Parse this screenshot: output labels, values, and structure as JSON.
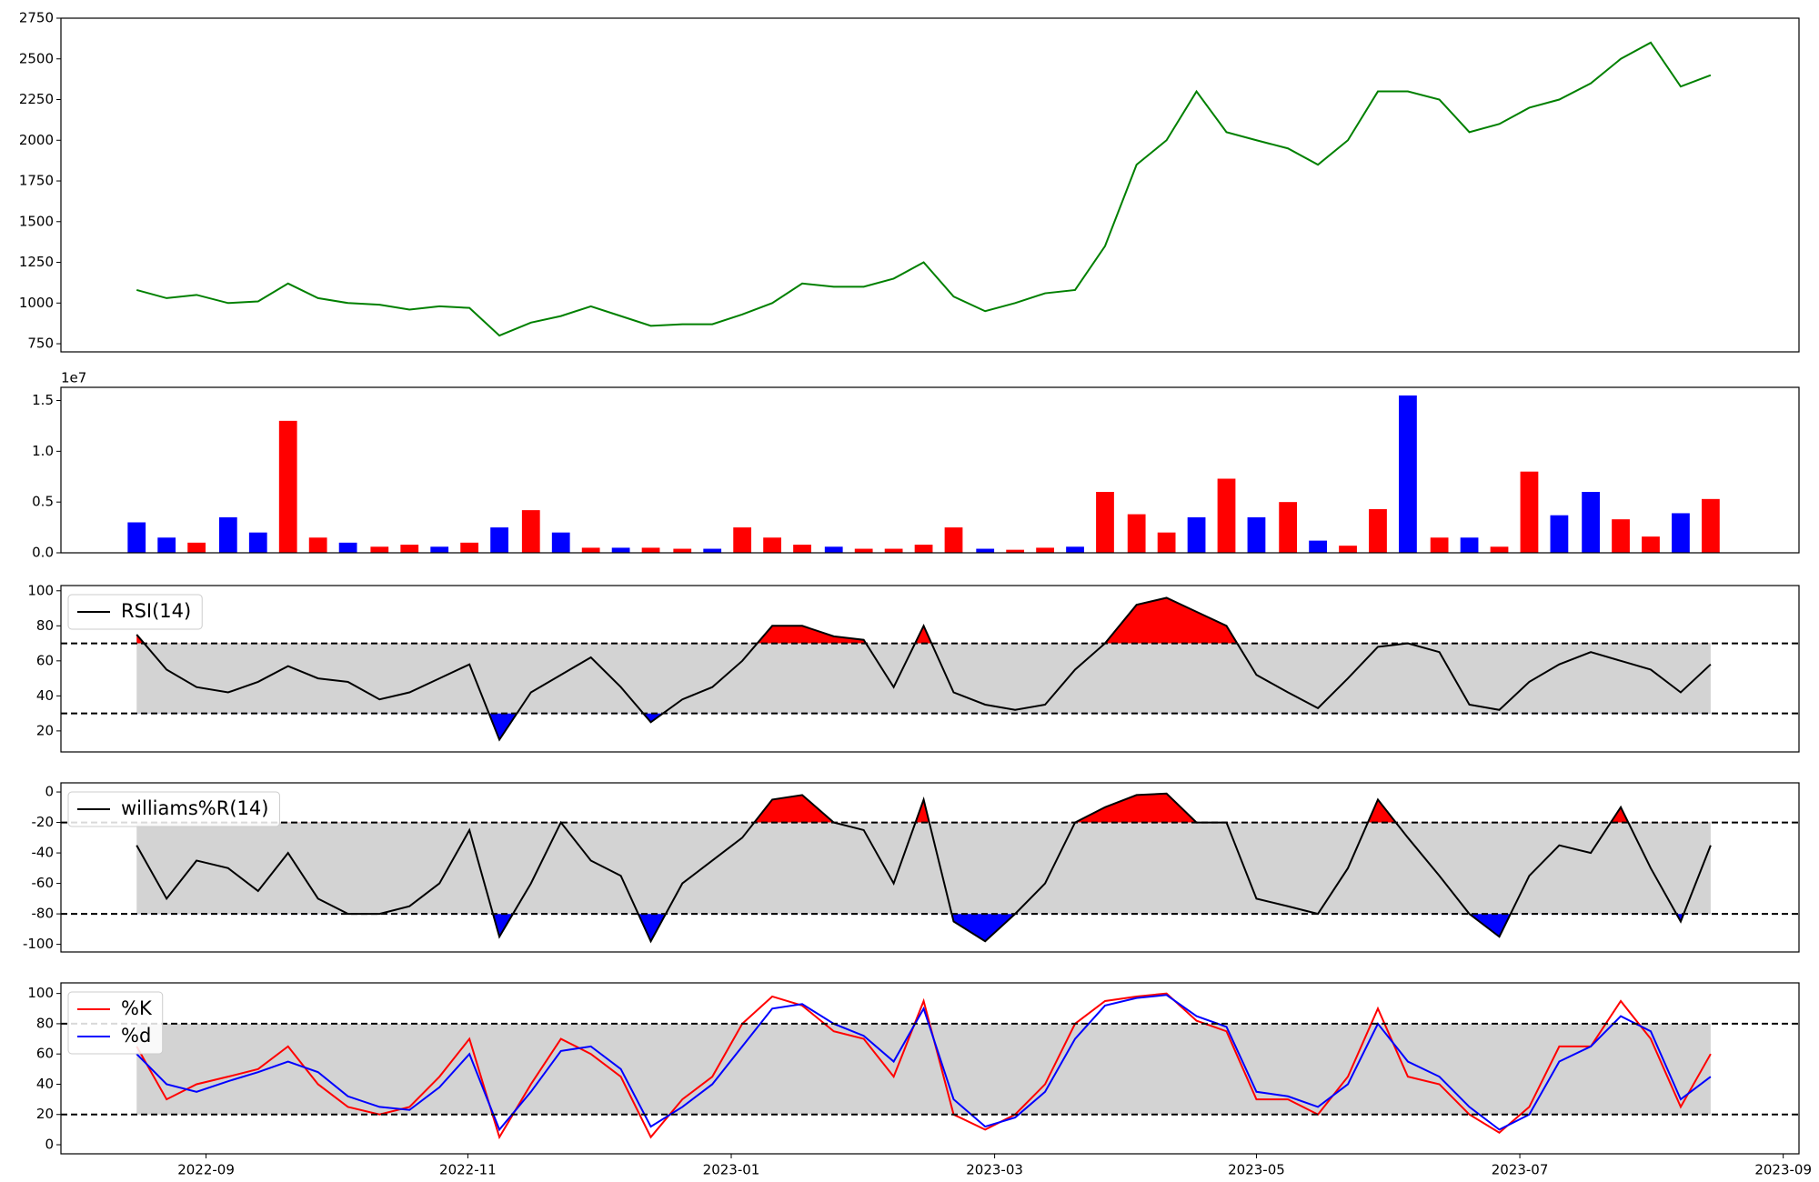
{
  "chart_data": [
    {
      "type": "line",
      "x": [
        2022.623,
        2022.642,
        2022.661,
        2022.681,
        2022.7,
        2022.719,
        2022.738,
        2022.757,
        2022.777,
        2022.796,
        2022.815,
        2022.834,
        2022.853,
        2022.873,
        2022.892,
        2022.911,
        2022.93,
        2022.949,
        2022.969,
        2022.988,
        2023.007,
        2023.026,
        2023.045,
        2023.065,
        2023.084,
        2023.103,
        2023.122,
        2023.141,
        2023.161,
        2023.18,
        2023.199,
        2023.218,
        2023.237,
        2023.257,
        2023.276,
        2023.295,
        2023.314,
        2023.333,
        2023.353,
        2023.372,
        2023.391,
        2023.41,
        2023.429,
        2023.449,
        2023.468,
        2023.487,
        2023.506,
        2023.525,
        2023.545,
        2023.564,
        2023.583,
        2023.602,
        2023.621
      ],
      "series": [
        {
          "color": "green",
          "values": [
            1080,
            1030,
            1050,
            1000,
            1010,
            1120,
            1030,
            1000,
            990,
            960,
            980,
            970,
            800,
            880,
            920,
            980,
            920,
            860,
            870,
            870,
            930,
            1000,
            1120,
            1100,
            1100,
            1150,
            1250,
            1040,
            950,
            1000,
            1060,
            1080,
            1350,
            1850,
            2000,
            2300,
            2050,
            2000,
            1950,
            1850,
            2000,
            2300,
            2300,
            2250,
            2050,
            2100,
            2200,
            2250,
            2350,
            2500,
            2600,
            2330,
            2400
          ]
        }
      ],
      "xlim": [
        2022.575,
        2023.677
      ],
      "ylim": [
        700,
        2750
      ],
      "yticks": [
        750,
        1000,
        1250,
        1500,
        1750,
        2000,
        2250,
        2500,
        2750
      ]
    },
    {
      "type": "bar",
      "x": [
        2022.623,
        2022.642,
        2022.661,
        2022.681,
        2022.7,
        2022.719,
        2022.738,
        2022.757,
        2022.777,
        2022.796,
        2022.815,
        2022.834,
        2022.853,
        2022.873,
        2022.892,
        2022.911,
        2022.93,
        2022.949,
        2022.969,
        2022.988,
        2023.007,
        2023.026,
        2023.045,
        2023.065,
        2023.084,
        2023.103,
        2023.122,
        2023.141,
        2023.161,
        2023.18,
        2023.199,
        2023.218,
        2023.237,
        2023.257,
        2023.276,
        2023.295,
        2023.314,
        2023.333,
        2023.353,
        2023.372,
        2023.391,
        2023.41,
        2023.429,
        2023.449,
        2023.468,
        2023.487,
        2023.506,
        2023.525,
        2023.545,
        2023.564,
        2023.583,
        2023.602,
        2023.621
      ],
      "values": [
        0.3,
        0.15,
        0.1,
        0.35,
        0.2,
        1.3,
        0.15,
        0.1,
        0.06,
        0.08,
        0.06,
        0.1,
        0.25,
        0.42,
        0.2,
        0.05,
        0.05,
        0.05,
        0.04,
        0.04,
        0.25,
        0.15,
        0.08,
        0.06,
        0.04,
        0.04,
        0.08,
        0.25,
        0.04,
        0.03,
        0.05,
        0.06,
        0.6,
        0.38,
        0.2,
        0.35,
        0.73,
        0.35,
        0.5,
        0.12,
        0.07,
        0.43,
        1.55,
        0.15,
        0.15,
        0.06,
        0.8,
        0.37,
        0.6,
        0.33,
        0.16,
        0.39,
        0.53
      ],
      "colors": [
        "blue",
        "blue",
        "red",
        "blue",
        "blue",
        "red",
        "red",
        "blue",
        "red",
        "red",
        "blue",
        "red",
        "blue",
        "red",
        "blue",
        "red",
        "blue",
        "red",
        "red",
        "blue",
        "red",
        "red",
        "red",
        "blue",
        "red",
        "red",
        "red",
        "red",
        "blue",
        "red",
        "red",
        "blue",
        "red",
        "red",
        "red",
        "blue",
        "red",
        "blue",
        "red",
        "blue",
        "red",
        "red",
        "blue",
        "red",
        "blue",
        "red",
        "red",
        "blue",
        "blue",
        "red",
        "red",
        "blue",
        "red"
      ],
      "offset_label": "1e7",
      "xlim": [
        2022.575,
        2023.677
      ],
      "ylim": [
        0,
        1.63
      ],
      "yticks": [
        {
          "value": 0,
          "label": "0.0"
        },
        {
          "value": 0.5,
          "label": "0.5"
        },
        {
          "value": 1,
          "label": "1.0"
        },
        {
          "value": 1.5,
          "label": "1.5"
        }
      ]
    },
    {
      "type": "oscillator",
      "x": [
        2022.623,
        2022.642,
        2022.661,
        2022.681,
        2022.7,
        2022.719,
        2022.738,
        2022.757,
        2022.777,
        2022.796,
        2022.815,
        2022.834,
        2022.853,
        2022.873,
        2022.892,
        2022.911,
        2022.93,
        2022.949,
        2022.969,
        2022.988,
        2023.007,
        2023.026,
        2023.045,
        2023.065,
        2023.084,
        2023.103,
        2023.122,
        2023.141,
        2023.161,
        2023.18,
        2023.199,
        2023.218,
        2023.237,
        2023.257,
        2023.276,
        2023.295,
        2023.314,
        2023.333,
        2023.353,
        2023.372,
        2023.391,
        2023.41,
        2023.429,
        2023.449,
        2023.468,
        2023.487,
        2023.506,
        2023.525,
        2023.545,
        2023.564,
        2023.583,
        2023.602,
        2023.621
      ],
      "series": [
        {
          "name": "RSI(14)",
          "color": "black",
          "values": [
            75,
            55,
            45,
            42,
            48,
            57,
            50,
            48,
            38,
            42,
            50,
            58,
            15,
            42,
            52,
            62,
            45,
            25,
            38,
            45,
            60,
            80,
            80,
            74,
            72,
            45,
            80,
            42,
            35,
            32,
            35,
            55,
            70,
            92,
            96,
            88,
            80,
            52,
            42,
            33,
            50,
            68,
            70,
            65,
            35,
            32,
            48,
            58,
            65,
            60,
            55,
            42,
            58
          ]
        }
      ],
      "band": [
        30,
        70
      ],
      "band_color": "lightgray",
      "fill_colors": [
        "red",
        "blue"
      ],
      "legend": "upper left",
      "xlim": [
        2022.575,
        2023.677
      ],
      "ylim": [
        8,
        103
      ],
      "yticks": [
        20,
        40,
        60,
        80,
        100
      ]
    },
    {
      "type": "oscillator",
      "x": [
        2022.623,
        2022.642,
        2022.661,
        2022.681,
        2022.7,
        2022.719,
        2022.738,
        2022.757,
        2022.777,
        2022.796,
        2022.815,
        2022.834,
        2022.853,
        2022.873,
        2022.892,
        2022.911,
        2022.93,
        2022.949,
        2022.969,
        2022.988,
        2023.007,
        2023.026,
        2023.045,
        2023.065,
        2023.084,
        2023.103,
        2023.122,
        2023.141,
        2023.161,
        2023.18,
        2023.199,
        2023.218,
        2023.237,
        2023.257,
        2023.276,
        2023.295,
        2023.314,
        2023.333,
        2023.353,
        2023.372,
        2023.391,
        2023.41,
        2023.429,
        2023.449,
        2023.468,
        2023.487,
        2023.506,
        2023.525,
        2023.545,
        2023.564,
        2023.583,
        2023.602,
        2023.621
      ],
      "series": [
        {
          "name": "williams%R(14)",
          "color": "black",
          "values": [
            -35,
            -70,
            -45,
            -50,
            -65,
            -40,
            -70,
            -80,
            -80,
            -75,
            -60,
            -25,
            -95,
            -60,
            -20,
            -45,
            -55,
            -98,
            -60,
            -45,
            -30,
            -5,
            -2,
            -20,
            -25,
            -60,
            -5,
            -85,
            -98,
            -80,
            -60,
            -20,
            -10,
            -2,
            -1,
            -20,
            -20,
            -70,
            -75,
            -80,
            -50,
            -5,
            -30,
            -55,
            -80,
            -95,
            -55,
            -35,
            -40,
            -10,
            -50,
            -85,
            -35
          ]
        }
      ],
      "band": [
        -80,
        -20
      ],
      "band_color": "lightgray",
      "fill_colors": [
        "red",
        "blue"
      ],
      "legend": "upper left",
      "xlim": [
        2022.575,
        2023.677
      ],
      "ylim": [
        -105,
        6
      ],
      "yticks": [
        0,
        -20,
        -40,
        -60,
        -80,
        -100
      ]
    },
    {
      "type": "oscillator",
      "x": [
        2022.623,
        2022.642,
        2022.661,
        2022.681,
        2022.7,
        2022.719,
        2022.738,
        2022.757,
        2022.777,
        2022.796,
        2022.815,
        2022.834,
        2022.853,
        2022.873,
        2022.892,
        2022.911,
        2022.93,
        2022.949,
        2022.969,
        2022.988,
        2023.007,
        2023.026,
        2023.045,
        2023.065,
        2023.084,
        2023.103,
        2023.122,
        2023.141,
        2023.161,
        2023.18,
        2023.199,
        2023.218,
        2023.237,
        2023.257,
        2023.276,
        2023.295,
        2023.314,
        2023.333,
        2023.353,
        2023.372,
        2023.391,
        2023.41,
        2023.429,
        2023.449,
        2023.468,
        2023.487,
        2023.506,
        2023.525,
        2023.545,
        2023.564,
        2023.583,
        2023.602,
        2023.621
      ],
      "series": [
        {
          "name": "%K",
          "color": "red",
          "values": [
            65,
            30,
            40,
            45,
            50,
            65,
            40,
            25,
            20,
            25,
            45,
            70,
            5,
            40,
            70,
            60,
            45,
            5,
            30,
            45,
            80,
            98,
            92,
            75,
            70,
            45,
            95,
            20,
            10,
            20,
            40,
            80,
            95,
            98,
            100,
            82,
            75,
            30,
            30,
            20,
            45,
            90,
            45,
            40,
            20,
            8,
            25,
            65,
            65,
            95,
            70,
            25,
            60
          ]
        },
        {
          "name": "%d",
          "color": "blue",
          "values": [
            60,
            40,
            35,
            42,
            48,
            55,
            48,
            32,
            25,
            23,
            38,
            60,
            10,
            35,
            62,
            65,
            50,
            12,
            25,
            40,
            65,
            90,
            93,
            80,
            72,
            55,
            90,
            30,
            12,
            18,
            35,
            70,
            92,
            97,
            99,
            85,
            78,
            35,
            32,
            25,
            40,
            80,
            55,
            45,
            25,
            10,
            20,
            55,
            65,
            85,
            75,
            30,
            45
          ]
        }
      ],
      "band": [
        20,
        80
      ],
      "band_color": "lightgray",
      "legend": "upper left",
      "xlim": [
        2022.575,
        2023.677
      ],
      "ylim": [
        -6,
        107
      ],
      "yticks": [
        0,
        20,
        40,
        60,
        80,
        100
      ],
      "xticks": [
        {
          "value": 2022.667,
          "label": "2022-09"
        },
        {
          "value": 2022.833,
          "label": "2022-11"
        },
        {
          "value": 2023.0,
          "label": "2023-01"
        },
        {
          "value": 2023.167,
          "label": "2023-03"
        },
        {
          "value": 2023.333,
          "label": "2023-05"
        },
        {
          "value": 2023.5,
          "label": "2023-07"
        },
        {
          "value": 2023.667,
          "label": "2023-09"
        }
      ]
    }
  ]
}
